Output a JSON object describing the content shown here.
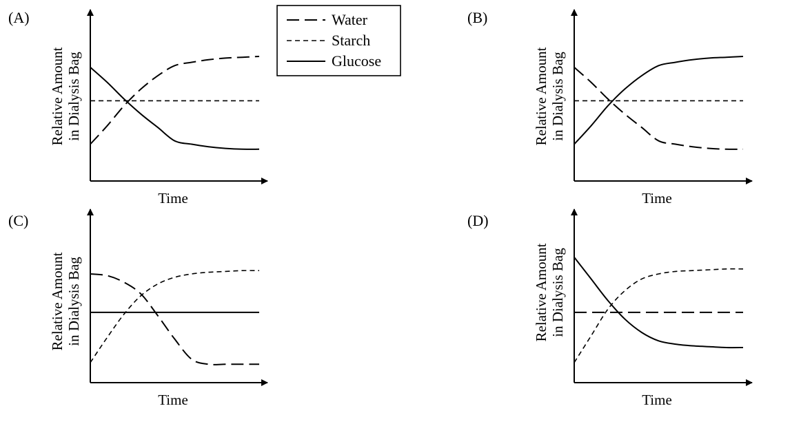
{
  "legend": {
    "items": [
      {
        "name": "Water",
        "style": "long-dash"
      },
      {
        "name": "Starch",
        "style": "short-dash"
      },
      {
        "name": "Glucose",
        "style": "solid"
      }
    ]
  },
  "chart_data": [
    {
      "type": "line",
      "panel_label": "(A)",
      "xlabel": "Time",
      "ylabel_line1": "Relative Amount",
      "ylabel_line2": "in Dialysis Bag",
      "xlim": [
        0,
        10
      ],
      "ylim": [
        0,
        10
      ],
      "x": [
        0,
        1,
        2,
        3,
        4,
        5,
        6,
        7,
        8,
        9,
        10
      ],
      "series": [
        {
          "name": "Water",
          "values": [
            2.2,
            3.3,
            4.5,
            5.5,
            6.3,
            6.9,
            7.1,
            7.25,
            7.35,
            7.4,
            7.45
          ]
        },
        {
          "name": "Starch",
          "values": [
            4.8,
            4.8,
            4.8,
            4.8,
            4.8,
            4.8,
            4.8,
            4.8,
            4.8,
            4.8,
            4.8
          ]
        },
        {
          "name": "Glucose",
          "values": [
            6.8,
            5.9,
            4.9,
            4.0,
            3.2,
            2.4,
            2.2,
            2.05,
            1.95,
            1.9,
            1.9
          ]
        }
      ]
    },
    {
      "type": "line",
      "panel_label": "(B)",
      "xlabel": "Time",
      "ylabel_line1": "Relative Amount",
      "ylabel_line2": "in Dialysis Bag",
      "xlim": [
        0,
        10
      ],
      "ylim": [
        0,
        10
      ],
      "x": [
        0,
        1,
        2,
        3,
        4,
        5,
        6,
        7,
        8,
        9,
        10
      ],
      "series": [
        {
          "name": "Water",
          "values": [
            6.8,
            5.9,
            4.9,
            4.0,
            3.2,
            2.4,
            2.2,
            2.05,
            1.95,
            1.9,
            1.9
          ]
        },
        {
          "name": "Starch",
          "values": [
            4.8,
            4.8,
            4.8,
            4.8,
            4.8,
            4.8,
            4.8,
            4.8,
            4.8,
            4.8,
            4.8
          ]
        },
        {
          "name": "Glucose",
          "values": [
            2.2,
            3.3,
            4.5,
            5.5,
            6.3,
            6.9,
            7.1,
            7.25,
            7.35,
            7.4,
            7.45
          ]
        }
      ]
    },
    {
      "type": "line",
      "panel_label": "(C)",
      "xlabel": "Time",
      "ylabel_line1": "Relative Amount",
      "ylabel_line2": "in Dialysis Bag",
      "xlim": [
        0,
        10
      ],
      "ylim": [
        0,
        10
      ],
      "x": [
        0,
        1,
        2,
        3,
        4,
        5,
        6,
        7,
        8,
        9,
        10
      ],
      "series": [
        {
          "name": "Water",
          "values": [
            6.5,
            6.4,
            6.0,
            5.3,
            4.0,
            2.6,
            1.4,
            1.1,
            1.1,
            1.1,
            1.1
          ]
        },
        {
          "name": "Starch",
          "values": [
            1.2,
            2.7,
            4.1,
            5.2,
            5.9,
            6.3,
            6.5,
            6.6,
            6.65,
            6.7,
            6.7
          ]
        },
        {
          "name": "Glucose",
          "values": [
            4.2,
            4.2,
            4.2,
            4.2,
            4.2,
            4.2,
            4.2,
            4.2,
            4.2,
            4.2,
            4.2
          ]
        }
      ]
    },
    {
      "type": "line",
      "panel_label": "(D)",
      "xlabel": "Time",
      "ylabel_line1": "Relative Amount",
      "ylabel_line2": "in Dialysis Bag",
      "xlim": [
        0,
        10
      ],
      "ylim": [
        0,
        10
      ],
      "x": [
        0,
        1,
        2,
        3,
        4,
        5,
        6,
        7,
        8,
        9,
        10
      ],
      "series": [
        {
          "name": "Water",
          "values": [
            4.2,
            4.2,
            4.2,
            4.2,
            4.2,
            4.2,
            4.2,
            4.2,
            4.2,
            4.2,
            4.2
          ]
        },
        {
          "name": "Starch",
          "values": [
            1.2,
            2.8,
            4.4,
            5.5,
            6.2,
            6.5,
            6.65,
            6.7,
            6.75,
            6.8,
            6.8
          ]
        },
        {
          "name": "Glucose",
          "values": [
            7.5,
            6.2,
            4.9,
            3.8,
            3.0,
            2.5,
            2.3,
            2.2,
            2.15,
            2.1,
            2.1
          ]
        }
      ]
    }
  ]
}
